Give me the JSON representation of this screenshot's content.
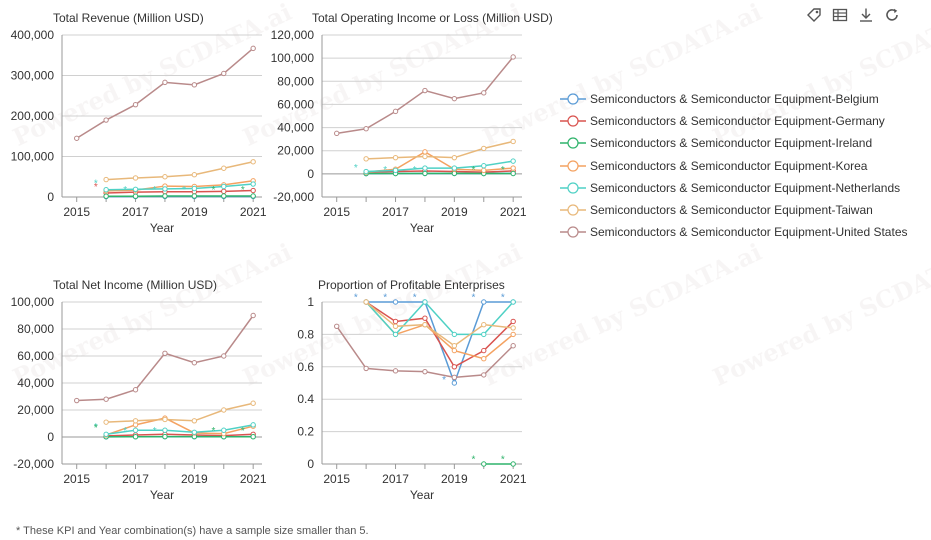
{
  "toolbar": {
    "icons": [
      "tag-icon",
      "table-icon",
      "download-icon",
      "refresh-icon"
    ]
  },
  "legend": {
    "items": [
      {
        "label": "Semiconductors & Semiconductor Equipment-Belgium",
        "color": "#5a9bd6"
      },
      {
        "label": "Semiconductors & Semiconductor Equipment-Germany",
        "color": "#d9534f"
      },
      {
        "label": "Semiconductors & Semiconductor Equipment-Ireland",
        "color": "#2fb36b"
      },
      {
        "label": "Semiconductors & Semiconductor Equipment-Korea",
        "color": "#f4a261"
      },
      {
        "label": "Semiconductors & Semiconductor Equipment-Netherlands",
        "color": "#4fd1c5"
      },
      {
        "label": "Semiconductors & Semiconductor Equipment-Taiwan",
        "color": "#e8b87a"
      },
      {
        "label": "Semiconductors & Semiconductor Equipment-United States",
        "color": "#b98a8a"
      }
    ]
  },
  "footnote": "* These KPI and Year combination(s) have a sample size smaller than 5.",
  "watermark": "Powered by SCDATA.ai",
  "chart_data": [
    {
      "type": "line",
      "title": "Total Revenue (Million USD)",
      "xlabel": "Year",
      "ylabel": "",
      "x": [
        2016,
        2017,
        2018,
        2019,
        2020,
        2021
      ],
      "xlim": [
        2014.5,
        2021.3
      ],
      "xticks": [
        2015,
        2017,
        2019,
        2021
      ],
      "ylim": [
        0,
        400000
      ],
      "yticks": [
        0,
        100000,
        200000,
        300000,
        400000
      ],
      "yticklabels": [
        "0",
        "100,000",
        "200,000",
        "300,000",
        "400,000"
      ],
      "series": [
        {
          "name": "Semiconductors & Semiconductor Equipment-Belgium",
          "x": [
            2016,
            2017,
            2018,
            2019,
            2020,
            2021
          ],
          "values": [
            1000,
            1100,
            1200,
            1100,
            1200,
            1300
          ]
        },
        {
          "name": "Semiconductors & Semiconductor Equipment-Germany",
          "x": [
            2016,
            2017,
            2018,
            2019,
            2020,
            2021
          ],
          "values": [
            10000,
            12000,
            13000,
            13000,
            14000,
            16000
          ]
        },
        {
          "name": "Semiconductors & Semiconductor Equipment-Ireland",
          "x": [
            2016,
            2017,
            2018,
            2019,
            2020,
            2021
          ],
          "values": [
            2000,
            2000,
            2500,
            2500,
            2500,
            2500
          ]
        },
        {
          "name": "Semiconductors & Semiconductor Equipment-Korea",
          "x": [
            2016,
            2017,
            2018,
            2019,
            2020,
            2021
          ],
          "values": [
            15000,
            17000,
            27000,
            26000,
            30000,
            40000
          ]
        },
        {
          "name": "Semiconductors & Semiconductor Equipment-Netherlands",
          "x": [
            2016,
            2017,
            2018,
            2019,
            2020,
            2021
          ],
          "values": [
            18000,
            19000,
            20000,
            21000,
            26000,
            32000
          ]
        },
        {
          "name": "Semiconductors & Semiconductor Equipment-Taiwan",
          "x": [
            2016,
            2017,
            2018,
            2019,
            2020,
            2021
          ],
          "values": [
            43000,
            47000,
            50000,
            55000,
            71000,
            87000
          ]
        },
        {
          "name": "Semiconductors & Semiconductor Equipment-United States",
          "x": [
            2015,
            2016,
            2017,
            2018,
            2019,
            2020,
            2021
          ],
          "values": [
            145000,
            190000,
            228000,
            283000,
            277000,
            305000,
            367000
          ]
        }
      ],
      "asterisks": [
        {
          "x": 2015.65,
          "y": 38000,
          "series": 4
        },
        {
          "x": 2015.65,
          "y": 30000,
          "series": 1
        },
        {
          "x": 2016.65,
          "y": 22000,
          "series": 4
        },
        {
          "x": 2017.65,
          "y": 22000,
          "series": 4
        },
        {
          "x": 2018.65,
          "y": 22000,
          "series": 4
        },
        {
          "x": 2019.65,
          "y": 22000,
          "series": 2
        },
        {
          "x": 2020.65,
          "y": 22000,
          "series": 2
        }
      ]
    },
    {
      "type": "line",
      "title": "Total Operating Income or Loss (Million USD)",
      "xlabel": "Year",
      "ylabel": "",
      "x": [
        2016,
        2017,
        2018,
        2019,
        2020,
        2021
      ],
      "xlim": [
        2014.5,
        2021.3
      ],
      "xticks": [
        2015,
        2017,
        2019,
        2021
      ],
      "ylim": [
        -20000,
        120000
      ],
      "yticks": [
        -20000,
        0,
        20000,
        40000,
        60000,
        80000,
        100000,
        120000
      ],
      "yticklabels": [
        "-20,000",
        "0",
        "20,000",
        "40,000",
        "60,000",
        "80,000",
        "100,000",
        "120,000"
      ],
      "series": [
        {
          "name": "Semiconductors & Semiconductor Equipment-Belgium",
          "x": [
            2016,
            2017,
            2018,
            2019,
            2020,
            2021
          ],
          "values": [
            200,
            300,
            300,
            300,
            300,
            400
          ]
        },
        {
          "name": "Semiconductors & Semiconductor Equipment-Germany",
          "x": [
            2016,
            2017,
            2018,
            2019,
            2020,
            2021
          ],
          "values": [
            1500,
            2000,
            2500,
            2000,
            1500,
            2500
          ]
        },
        {
          "name": "Semiconductors & Semiconductor Equipment-Ireland",
          "x": [
            2016,
            2017,
            2018,
            2019,
            2020,
            2021
          ],
          "values": [
            300,
            300,
            400,
            400,
            300,
            300
          ]
        },
        {
          "name": "Semiconductors & Semiconductor Equipment-Korea",
          "x": [
            2016,
            2017,
            2018,
            2019,
            2020,
            2021
          ],
          "values": [
            1500,
            4000,
            19000,
            4000,
            3000,
            5000
          ]
        },
        {
          "name": "Semiconductors & Semiconductor Equipment-Netherlands",
          "x": [
            2016,
            2017,
            2018,
            2019,
            2020,
            2021
          ],
          "values": [
            2000,
            3000,
            5000,
            5000,
            7000,
            11000
          ]
        },
        {
          "name": "Semiconductors & Semiconductor Equipment-Taiwan",
          "x": [
            2016,
            2017,
            2018,
            2019,
            2020,
            2021
          ],
          "values": [
            13000,
            14000,
            15000,
            14000,
            22000,
            28000
          ]
        },
        {
          "name": "Semiconductors & Semiconductor Equipment-United States",
          "x": [
            2015,
            2016,
            2017,
            2018,
            2019,
            2020,
            2021
          ],
          "values": [
            35000,
            39000,
            54000,
            72000,
            65000,
            70000,
            101000
          ]
        }
      ],
      "asterisks": [
        {
          "x": 2015.65,
          "y": 7000,
          "series": 4
        },
        {
          "x": 2016.65,
          "y": 5000,
          "series": 4
        },
        {
          "x": 2017.65,
          "y": 5000,
          "series": 4
        },
        {
          "x": 2019.65,
          "y": 5000,
          "series": 2
        },
        {
          "x": 2020.65,
          "y": 5000,
          "series": 2
        }
      ]
    },
    {
      "type": "line",
      "title": "Total Net Income (Million USD)",
      "xlabel": "Year",
      "ylabel": "",
      "x": [
        2016,
        2017,
        2018,
        2019,
        2020,
        2021
      ],
      "xlim": [
        2014.5,
        2021.3
      ],
      "xticks": [
        2015,
        2017,
        2019,
        2021
      ],
      "ylim": [
        -20000,
        100000
      ],
      "yticks": [
        -20000,
        0,
        20000,
        40000,
        60000,
        80000,
        100000
      ],
      "yticklabels": [
        "-20,000",
        "0",
        "20,000",
        "40,000",
        "60,000",
        "80,000",
        "100,000"
      ],
      "series": [
        {
          "name": "Semiconductors & Semiconductor Equipment-Belgium",
          "x": [
            2016,
            2017,
            2018,
            2019,
            2020,
            2021
          ],
          "values": [
            100,
            200,
            200,
            200,
            200,
            300
          ]
        },
        {
          "name": "Semiconductors & Semiconductor Equipment-Germany",
          "x": [
            2016,
            2017,
            2018,
            2019,
            2020,
            2021
          ],
          "values": [
            800,
            1500,
            2000,
            1500,
            1000,
            2000
          ]
        },
        {
          "name": "Semiconductors & Semiconductor Equipment-Ireland",
          "x": [
            2016,
            2017,
            2018,
            2019,
            2020,
            2021
          ],
          "values": [
            200,
            200,
            300,
            300,
            200,
            200
          ]
        },
        {
          "name": "Semiconductors & Semiconductor Equipment-Korea",
          "x": [
            2016,
            2017,
            2018,
            2019,
            2020,
            2021
          ],
          "values": [
            1500,
            9000,
            14000,
            3000,
            2500,
            8000
          ]
        },
        {
          "name": "Semiconductors & Semiconductor Equipment-Netherlands",
          "x": [
            2016,
            2017,
            2018,
            2019,
            2020,
            2021
          ],
          "values": [
            2000,
            5000,
            5000,
            3500,
            5000,
            9000
          ]
        },
        {
          "name": "Semiconductors & Semiconductor Equipment-Taiwan",
          "x": [
            2016,
            2017,
            2018,
            2019,
            2020,
            2021
          ],
          "values": [
            11000,
            12000,
            13000,
            12000,
            20000,
            25000
          ]
        },
        {
          "name": "Semiconductors & Semiconductor Equipment-United States",
          "x": [
            2015,
            2016,
            2017,
            2018,
            2019,
            2020,
            2021
          ],
          "values": [
            27000,
            28000,
            35000,
            62000,
            55000,
            60000,
            90000
          ]
        }
      ],
      "asterisks": [
        {
          "x": 2015.65,
          "y": 9000,
          "series": 4
        },
        {
          "x": 2015.65,
          "y": 8000,
          "series": 2
        },
        {
          "x": 2016.65,
          "y": 6000,
          "series": 4
        },
        {
          "x": 2017.65,
          "y": 6000,
          "series": 4
        },
        {
          "x": 2019.65,
          "y": 6000,
          "series": 2
        },
        {
          "x": 2020.65,
          "y": 6000,
          "series": 2
        }
      ]
    },
    {
      "type": "line",
      "title": "Proportion of Profitable Enterprises",
      "xlabel": "Year",
      "ylabel": "",
      "x": [
        2015,
        2016,
        2017,
        2018,
        2019,
        2020,
        2021
      ],
      "xlim": [
        2014.5,
        2021.3
      ],
      "xticks": [
        2015,
        2017,
        2019,
        2021
      ],
      "ylim": [
        0,
        1
      ],
      "yticks": [
        0,
        0.2,
        0.4,
        0.6,
        0.8,
        1
      ],
      "yticklabels": [
        "0",
        "0.2",
        "0.4",
        "0.6",
        "0.8",
        "1"
      ],
      "series": [
        {
          "name": "Semiconductors & Semiconductor Equipment-Belgium",
          "x": [
            2016,
            2017,
            2018,
            2019,
            2020,
            2021
          ],
          "values": [
            1,
            1,
            1,
            0.5,
            1,
            1
          ]
        },
        {
          "name": "Semiconductors & Semiconductor Equipment-Germany",
          "x": [
            2016,
            2017,
            2018,
            2019,
            2020,
            2021
          ],
          "values": [
            1,
            0.88,
            0.9,
            0.6,
            0.7,
            0.88
          ]
        },
        {
          "name": "Semiconductors & Semiconductor Equipment-Ireland",
          "x": [
            2020,
            2021
          ],
          "values": [
            0,
            0
          ]
        },
        {
          "name": "Semiconductors & Semiconductor Equipment-Korea",
          "x": [
            2016,
            2017,
            2018,
            2019,
            2020,
            2021
          ],
          "values": [
            1,
            0.8,
            0.86,
            0.7,
            0.65,
            0.8
          ]
        },
        {
          "name": "Semiconductors & Semiconductor Equipment-Netherlands",
          "x": [
            2016,
            2017,
            2018,
            2019,
            2020,
            2021
          ],
          "values": [
            1,
            0.8,
            1,
            0.8,
            0.8,
            1
          ]
        },
        {
          "name": "Semiconductors & Semiconductor Equipment-Taiwan",
          "x": [
            2016,
            2017,
            2018,
            2019,
            2020,
            2021
          ],
          "values": [
            1,
            0.85,
            0.86,
            0.73,
            0.86,
            0.84
          ]
        },
        {
          "name": "Semiconductors & Semiconductor Equipment-United States",
          "x": [
            2015,
            2016,
            2017,
            2018,
            2019,
            2020,
            2021
          ],
          "values": [
            0.85,
            0.59,
            0.575,
            0.57,
            0.535,
            0.55,
            0.73
          ]
        }
      ],
      "asterisks": [
        {
          "x": 2015.65,
          "y": 1.04,
          "series": 0
        },
        {
          "x": 2016.65,
          "y": 1.04,
          "series": 0
        },
        {
          "x": 2017.65,
          "y": 1.04,
          "series": 0
        },
        {
          "x": 2019.65,
          "y": 1.04,
          "series": 0
        },
        {
          "x": 2020.65,
          "y": 1.04,
          "series": 0
        },
        {
          "x": 2018.65,
          "y": 0.53,
          "series": 0
        },
        {
          "x": 2019.65,
          "y": 0.04,
          "series": 2
        },
        {
          "x": 2020.65,
          "y": 0.04,
          "series": 2
        }
      ]
    }
  ]
}
